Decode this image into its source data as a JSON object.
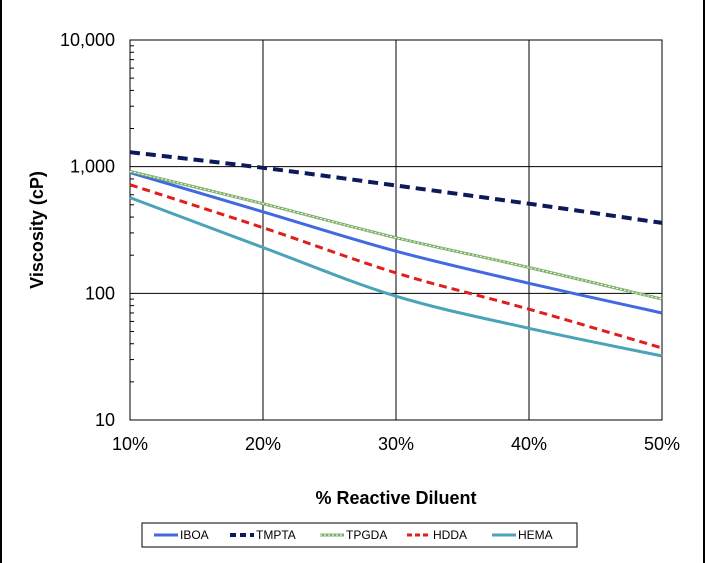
{
  "chart_data": {
    "type": "line",
    "title": "",
    "xlabel": "% Reactive Diluent",
    "ylabel": "Viscosity (cP)",
    "y_scale": "log",
    "xlim": [
      10,
      50
    ],
    "ylim": [
      10,
      10000
    ],
    "x_ticks": [
      "10%",
      "20%",
      "30%",
      "40%",
      "50%"
    ],
    "y_ticks": [
      "10",
      "100",
      "1,000",
      "10,000"
    ],
    "grid": true,
    "legend_position": "bottom",
    "x": [
      10,
      20,
      30,
      40,
      50
    ],
    "series": [
      {
        "name": "IBOA",
        "color": "#4169e1",
        "dash": "solid",
        "values": [
          900,
          440,
          215,
          120,
          70
        ]
      },
      {
        "name": "TMPTA",
        "color": "#0c1a5a",
        "dash": "dashed",
        "values": [
          1300,
          980,
          710,
          510,
          360
        ]
      },
      {
        "name": "TPGDA",
        "color": "#7fb069",
        "dash": "dotted-double",
        "values": [
          920,
          510,
          275,
          160,
          90
        ]
      },
      {
        "name": "HDDA",
        "color": "#e01e1e",
        "dash": "dashed",
        "values": [
          720,
          330,
          145,
          75,
          37
        ]
      },
      {
        "name": "HEMA",
        "color": "#4aa3b8",
        "dash": "solid",
        "values": [
          570,
          230,
          95,
          53,
          32
        ]
      }
    ]
  }
}
